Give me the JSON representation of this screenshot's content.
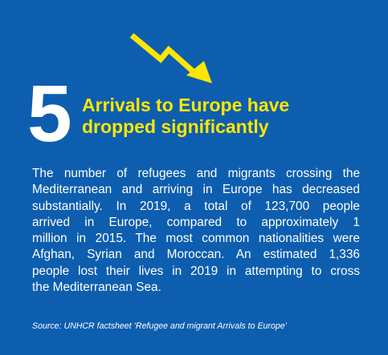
{
  "card": {
    "number": "5",
    "headline_lines": [
      "Arrivals to Europe have",
      "dropped significantly"
    ],
    "body_lines": [
      "The number of refugees and migrants crossing the",
      "Mediterranean and arriving in Europe has decreased",
      "substantially. In 2019, a total of 123,700 people",
      "arrived in Europe, compared to approximately 1",
      "million in 2015. The most common nationalities were",
      "Afghan, Syrian and Moroccan. An estimated 1,336",
      "people lost their lives in 2019 in attempting to cross",
      "the Mediterranean Sea."
    ],
    "source": "Source: UNHCR factsheet ‘Refugee and migrant Arrivals to Europe’",
    "icon": "trend-down-arrow-icon"
  },
  "colors": {
    "background": "#0d5eaf",
    "accent": "#ffe600",
    "text": "#ffffff"
  }
}
